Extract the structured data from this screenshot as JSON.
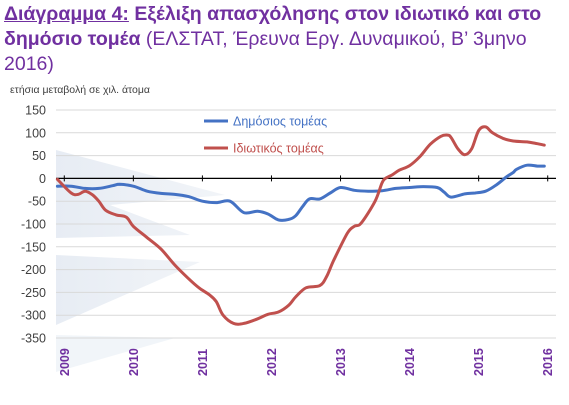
{
  "header": {
    "title_lead": "Διάγραμμα 4:",
    "title_bold": " Εξέλιξη απασχόλησης στον ιδιωτικό και στο δημόσιο τομέα",
    "title_rest": " (ΕΛΣΤΑΤ, Έρευνα Εργ. Δυναμικού, Β’ 3μηνο 2016)"
  },
  "unit_label": "ετήσια μεταβολή σε χιλ. άτομα",
  "chart_data": {
    "type": "line",
    "ylim": [
      -350,
      150
    ],
    "y_ticks": [
      150,
      100,
      50,
      0,
      -50,
      -100,
      -150,
      -200,
      -250,
      -300,
      -350
    ],
    "x_ticks": [
      "2009",
      "2010",
      "2011",
      "2012",
      "2013",
      "2014",
      "2015",
      "2016"
    ],
    "xlim": [
      2008.88,
      2016.12
    ],
    "grid": true,
    "legend_position": "top-center",
    "series": [
      {
        "name": "Δημόσιος τομέας",
        "color": "#4472C4",
        "x": [
          2008.9,
          2009.1,
          2009.3,
          2009.5,
          2009.7,
          2009.8,
          2010.0,
          2010.2,
          2010.4,
          2010.6,
          2010.8,
          2011.0,
          2011.2,
          2011.4,
          2011.6,
          2011.8,
          2011.95,
          2012.1,
          2012.25,
          2012.35,
          2012.45,
          2012.55,
          2012.7,
          2012.85,
          2013.0,
          2013.2,
          2013.4,
          2013.6,
          2013.8,
          2014.0,
          2014.2,
          2014.4,
          2014.5,
          2014.6,
          2014.8,
          2014.95,
          2015.1,
          2015.25,
          2015.4,
          2015.5,
          2015.55,
          2015.7,
          2015.85,
          2015.95
        ],
        "y": [
          -17,
          -17,
          -22,
          -22,
          -16,
          -13,
          -17,
          -28,
          -33,
          -35,
          -40,
          -50,
          -53,
          -50,
          -75,
          -72,
          -78,
          -91,
          -90,
          -82,
          -62,
          -45,
          -45,
          -32,
          -20,
          -26,
          -28,
          -27,
          -22,
          -20,
          -18,
          -20,
          -30,
          -41,
          -34,
          -32,
          -28,
          -15,
          3,
          13,
          20,
          29,
          27,
          27
        ]
      },
      {
        "name": "Ιδιωτικός τομέας",
        "color": "#C0504D",
        "x": [
          2008.9,
          2009.1,
          2009.2,
          2009.3,
          2009.4,
          2009.5,
          2009.6,
          2009.75,
          2009.9,
          2010.0,
          2010.2,
          2010.4,
          2010.6,
          2010.8,
          2010.95,
          2011.1,
          2011.2,
          2011.3,
          2011.45,
          2011.6,
          2011.8,
          2011.95,
          2012.1,
          2012.25,
          2012.35,
          2012.5,
          2012.7,
          2012.8,
          2012.9,
          2013.1,
          2013.2,
          2013.3,
          2013.5,
          2013.6,
          2013.65,
          2013.75,
          2013.85,
          2014.0,
          2014.15,
          2014.3,
          2014.45,
          2014.55,
          2014.6,
          2014.7,
          2014.8,
          2014.9,
          2015.0,
          2015.1,
          2015.2,
          2015.35,
          2015.5,
          2015.7,
          2015.85,
          2015.95
        ],
        "y": [
          -2,
          -32,
          -35,
          -28,
          -35,
          -50,
          -70,
          -80,
          -85,
          -105,
          -130,
          -155,
          -190,
          -220,
          -240,
          -255,
          -270,
          -300,
          -318,
          -318,
          -308,
          -298,
          -293,
          -278,
          -260,
          -240,
          -235,
          -215,
          -180,
          -120,
          -105,
          -98,
          -50,
          -10,
          0,
          8,
          18,
          28,
          48,
          75,
          92,
          95,
          90,
          65,
          52,
          65,
          105,
          113,
          100,
          88,
          82,
          80,
          76,
          73
        ]
      }
    ]
  }
}
